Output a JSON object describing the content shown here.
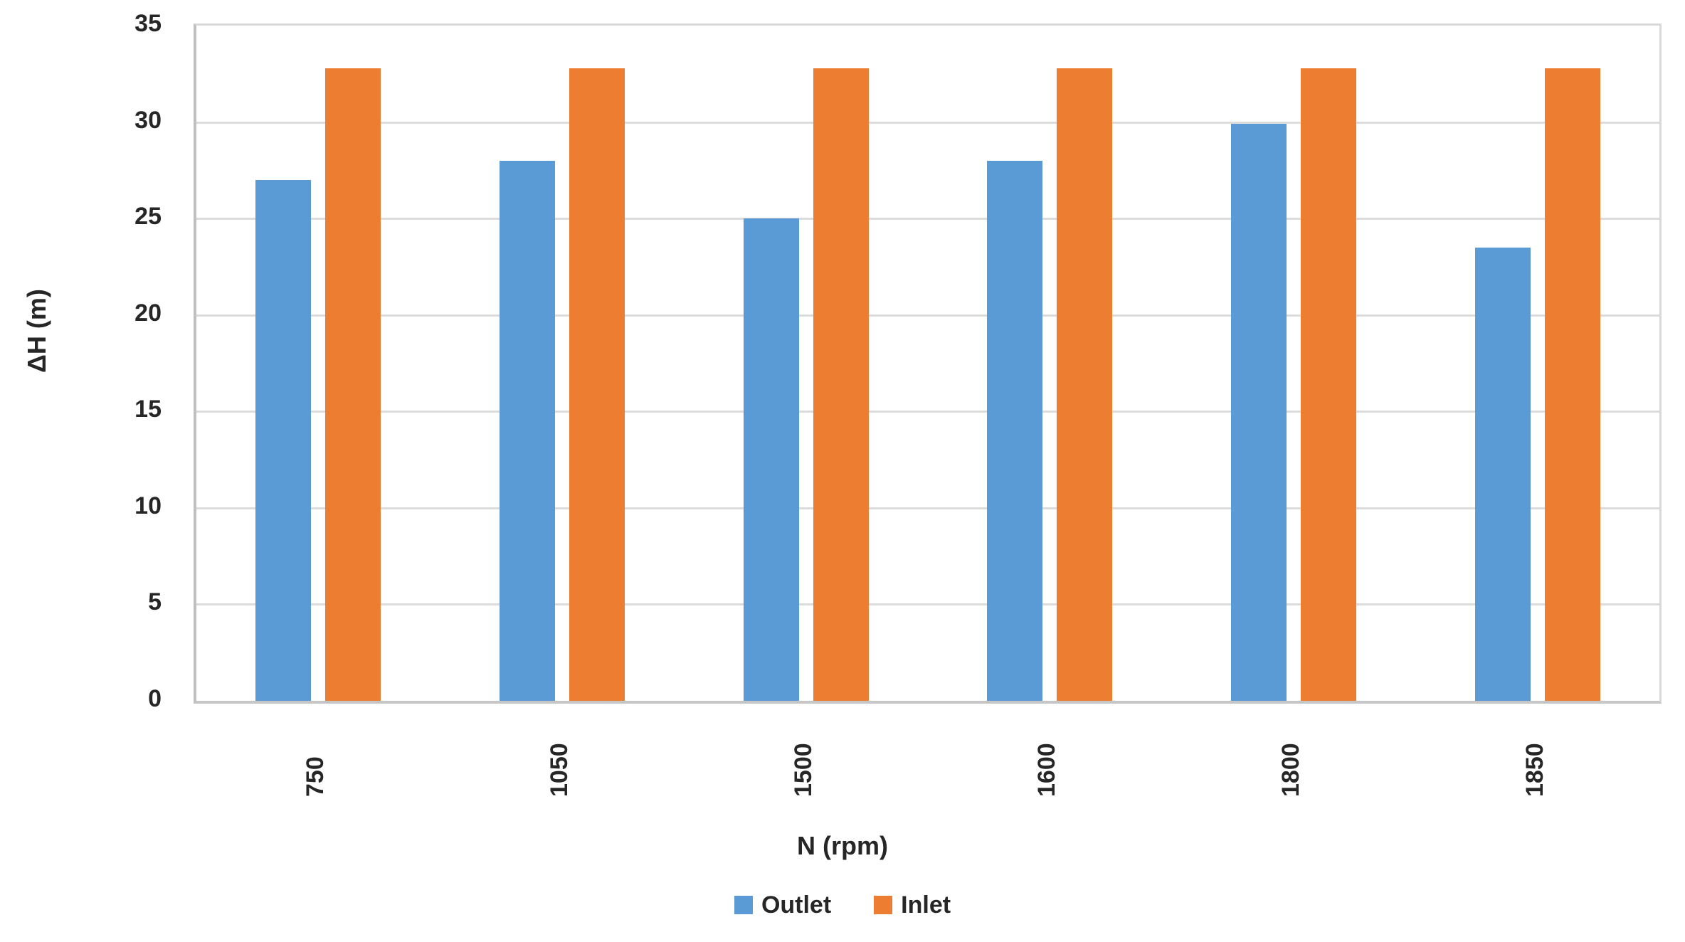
{
  "chart_data": {
    "type": "bar",
    "title": "",
    "categories": [
      "750",
      "1050",
      "1500",
      "1600",
      "1800",
      "1850"
    ],
    "series": [
      {
        "name": "Outlet",
        "color": "#5B9BD5",
        "values": [
          27,
          28,
          25,
          28,
          29.9,
          23.5
        ]
      },
      {
        "name": "Inlet",
        "color": "#ED7D31",
        "values": [
          32.8,
          32.8,
          32.8,
          32.8,
          32.8,
          32.8
        ]
      }
    ],
    "xlabel": "N (rpm)",
    "ylabel": "ΔH (m)",
    "ylim": [
      0,
      35
    ],
    "yticks": [
      0,
      5,
      10,
      15,
      20,
      25,
      30,
      35
    ],
    "grid": true,
    "legend_position": "bottom",
    "gridline_color": "#DCDCDC",
    "axis_line_color": "#BFBFBF",
    "text_color": "#262626"
  }
}
